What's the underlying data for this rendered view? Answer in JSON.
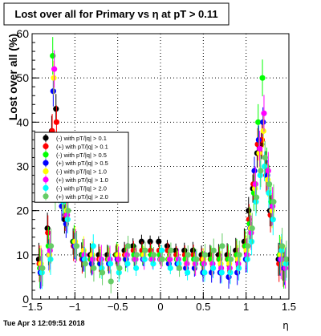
{
  "footer": {
    "date": "Tue Apr  3 12:09:51 2018"
  },
  "chart_data": {
    "type": "scatter",
    "title": "Lost over all for Primary vs   η at pT > 0.11",
    "xlabel": "η",
    "ylabel": "Lost over all (%)",
    "xlim": [
      -1.5,
      1.5
    ],
    "ylim": [
      0,
      60
    ],
    "x_ticks": [
      -1.5,
      -1,
      -0.5,
      0,
      0.5,
      1,
      1.5
    ],
    "x_tick_labels": [
      "−1.5",
      "−1",
      "−0.5",
      "0",
      "0.5",
      "1",
      "1.5"
    ],
    "y_ticks": [
      0,
      10,
      20,
      30,
      40,
      50,
      60
    ],
    "y_tick_labels": [
      "0",
      "10",
      "20",
      "30",
      "40",
      "50",
      "60"
    ],
    "grid": true,
    "legend_position": "left",
    "series": [
      {
        "name": "(-) with pT/|q| > 0.1",
        "color": "#000000",
        "marker": "circle",
        "x": [
          -1.4,
          -1.3,
          -1.25,
          -1.2,
          -1.15,
          -1.1,
          -1.0,
          -0.9,
          -0.8,
          -0.7,
          -0.6,
          -0.5,
          -0.4,
          -0.3,
          -0.2,
          -0.1,
          0.0,
          0.1,
          0.2,
          0.3,
          0.4,
          0.5,
          0.6,
          0.7,
          0.8,
          0.9,
          1.0,
          1.05,
          1.1,
          1.15,
          1.2,
          1.25,
          1.3,
          1.4,
          1.45
        ],
        "y": [
          9,
          16,
          38,
          43,
          30,
          18,
          13,
          10,
          10,
          10,
          10,
          10,
          11,
          12,
          13,
          13,
          13,
          12,
          11,
          11,
          11,
          10,
          10,
          10,
          10,
          11,
          13,
          20,
          25,
          33,
          35,
          30,
          20,
          9,
          8
        ]
      },
      {
        "name": "(+) with pT/|q| > 0.1",
        "color": "#ff0000",
        "marker": "circle",
        "x": [
          -1.4,
          -1.3,
          -1.25,
          -1.2,
          -1.15,
          -1.1,
          -1.0,
          -0.9,
          -0.8,
          -0.7,
          -0.6,
          -0.5,
          -0.4,
          -0.3,
          -0.2,
          -0.1,
          0.0,
          0.1,
          0.2,
          0.3,
          0.4,
          0.5,
          0.6,
          0.7,
          0.8,
          0.9,
          1.0,
          1.05,
          1.1,
          1.15,
          1.2,
          1.25,
          1.3,
          1.4,
          1.45
        ],
        "y": [
          8,
          15,
          38,
          40,
          28,
          19,
          12,
          9,
          9,
          9,
          9,
          10,
          10,
          11,
          11,
          11,
          11,
          11,
          10,
          10,
          10,
          9,
          9,
          9,
          9,
          10,
          12,
          18,
          26,
          35,
          36,
          28,
          19,
          8,
          7
        ]
      },
      {
        "name": "(-) with pT/|q| > 0.5",
        "color": "#00ff00",
        "marker": "circle",
        "x": [
          -1.4,
          -1.3,
          -1.25,
          -1.2,
          -1.15,
          -1.1,
          -1.0,
          -0.9,
          -0.8,
          -0.7,
          -0.6,
          -0.5,
          -0.4,
          -0.3,
          -0.2,
          -0.1,
          0.0,
          0.1,
          0.2,
          0.3,
          0.4,
          0.5,
          0.6,
          0.7,
          0.8,
          0.9,
          1.0,
          1.05,
          1.1,
          1.15,
          1.2,
          1.25,
          1.3,
          1.4,
          1.45
        ],
        "y": [
          7,
          12,
          55,
          30,
          26,
          20,
          13,
          10,
          9,
          8,
          9,
          10,
          9,
          10,
          10,
          10,
          10,
          9,
          9,
          9,
          9,
          8,
          9,
          9,
          9,
          10,
          12,
          17,
          24,
          40,
          50,
          30,
          22,
          10,
          7
        ]
      },
      {
        "name": "(+) with pT/|q| > 0.5",
        "color": "#0000ff",
        "marker": "circle",
        "x": [
          -1.4,
          -1.3,
          -1.25,
          -1.2,
          -1.15,
          -1.1,
          -1.0,
          -0.9,
          -0.8,
          -0.7,
          -0.6,
          -0.5,
          -0.4,
          -0.3,
          -0.2,
          -0.1,
          0.0,
          0.1,
          0.2,
          0.3,
          0.4,
          0.5,
          0.6,
          0.7,
          0.8,
          0.9,
          1.0,
          1.05,
          1.1,
          1.15,
          1.2,
          1.25,
          1.3,
          1.4,
          1.45
        ],
        "y": [
          6,
          10,
          47,
          33,
          21,
          17,
          12,
          9,
          8,
          8,
          8,
          9,
          9,
          9,
          9,
          9,
          9,
          8,
          8,
          7,
          7,
          6,
          6,
          6,
          5,
          6,
          9,
          16,
          29,
          36,
          40,
          28,
          20,
          9,
          7
        ]
      },
      {
        "name": "(-) with pT/|q| > 1.0",
        "color": "#ffff00",
        "marker": "circle",
        "x": [
          -1.4,
          -1.3,
          -1.25,
          -1.2,
          -1.15,
          -1.1,
          -1.0,
          -0.9,
          -0.8,
          -0.7,
          -0.6,
          -0.5,
          -0.4,
          -0.3,
          -0.2,
          -0.1,
          0.0,
          0.1,
          0.2,
          0.3,
          0.4,
          0.5,
          0.6,
          0.7,
          0.8,
          0.9,
          1.0,
          1.05,
          1.1,
          1.15,
          1.2,
          1.25,
          1.3,
          1.4,
          1.45
        ],
        "y": [
          8,
          10,
          50,
          28,
          24,
          20,
          13,
          11,
          10,
          9,
          9,
          10,
          10,
          9,
          10,
          9,
          9,
          9,
          9,
          8,
          8,
          9,
          8,
          8,
          8,
          9,
          11,
          16,
          25,
          33,
          38,
          27,
          20,
          10,
          8
        ]
      },
      {
        "name": "(+) with pT/|q| > 1.0",
        "color": "#ff00ff",
        "marker": "circle",
        "x": [
          -1.4,
          -1.3,
          -1.25,
          -1.2,
          -1.15,
          -1.1,
          -1.0,
          -0.9,
          -0.8,
          -0.7,
          -0.6,
          -0.5,
          -0.4,
          -0.3,
          -0.2,
          -0.1,
          0.0,
          0.1,
          0.2,
          0.3,
          0.4,
          0.5,
          0.6,
          0.7,
          0.8,
          0.9,
          1.0,
          1.05,
          1.1,
          1.15,
          1.2,
          1.25,
          1.3,
          1.4,
          1.45
        ],
        "y": [
          7,
          11,
          52,
          30,
          27,
          19,
          12,
          10,
          9,
          9,
          9,
          9,
          10,
          9,
          9,
          9,
          9,
          9,
          9,
          8,
          8,
          8,
          8,
          7,
          7,
          8,
          10,
          15,
          26,
          34,
          42,
          29,
          21,
          9,
          7
        ]
      },
      {
        "name": "(-) with pT/|q| > 2.0",
        "color": "#00ffff",
        "marker": "circle",
        "x": [
          -1.4,
          -1.3,
          -1.25,
          -1.2,
          -1.15,
          -1.1,
          -1.0,
          -0.9,
          -0.8,
          -0.7,
          -0.6,
          -0.5,
          -0.4,
          -0.3,
          -0.2,
          -0.1,
          0.0,
          0.1,
          0.2,
          0.3,
          0.4,
          0.5,
          0.6,
          0.7,
          0.8,
          0.9,
          1.0,
          1.05,
          1.1,
          1.15,
          1.2,
          1.25,
          1.3,
          1.4,
          1.45
        ],
        "y": [
          6,
          9,
          28,
          25,
          22,
          18,
          12,
          9,
          12,
          7,
          8,
          6,
          8,
          7,
          9,
          8,
          11,
          7,
          8,
          6,
          9,
          6,
          7,
          6,
          6,
          7,
          9,
          13,
          22,
          28,
          30,
          24,
          18,
          11,
          8
        ]
      },
      {
        "name": "(+) with pT/|q| > 2.0",
        "color": "#66cc66",
        "marker": "circle",
        "x": [
          -1.4,
          -1.3,
          -1.25,
          -1.2,
          -1.15,
          -1.1,
          -1.0,
          -0.9,
          -0.8,
          -0.7,
          -0.6,
          -0.5,
          -0.4,
          -0.3,
          -0.2,
          -0.1,
          0.0,
          0.1,
          0.2,
          0.3,
          0.4,
          0.5,
          0.6,
          0.7,
          0.8,
          0.9,
          1.0,
          1.05,
          1.1,
          1.15,
          1.2,
          1.25,
          1.3,
          1.4,
          1.45
        ],
        "y": [
          7,
          12,
          24,
          26,
          24,
          20,
          12,
          8,
          7,
          6,
          4,
          7,
          12,
          10,
          11,
          10,
          9,
          11,
          7,
          10,
          9,
          10,
          11,
          12,
          9,
          10,
          12,
          16,
          23,
          29,
          32,
          26,
          22,
          12,
          9
        ]
      }
    ]
  }
}
